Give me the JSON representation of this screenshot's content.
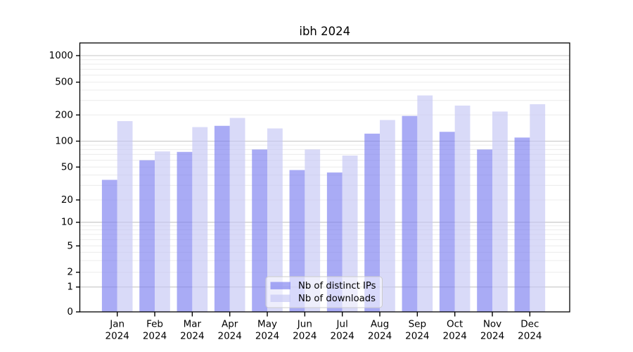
{
  "chart_data": {
    "type": "bar",
    "title": "ibh 2024",
    "xlabel": "",
    "ylabel": "",
    "yscale": "symlog",
    "ylim": [
      0,
      1400
    ],
    "grid": true,
    "legend_position": "lower center",
    "categories": [
      "Jan",
      "Feb",
      "Mar",
      "Apr",
      "May",
      "Jun",
      "Jul",
      "Aug",
      "Sep",
      "Oct",
      "Nov",
      "Dec"
    ],
    "xlabel_year": "2024",
    "yticks": [
      0,
      1,
      2,
      5,
      10,
      20,
      50,
      100,
      200,
      500,
      1000
    ],
    "series": [
      {
        "name": "Nb of distinct IPs",
        "color": "#7b7ef0",
        "opacity": 0.65,
        "values": [
          35,
          60,
          75,
          150,
          80,
          46,
          43,
          122,
          195,
          128,
          80,
          110
        ]
      },
      {
        "name": "Nb of downloads",
        "color": "#c5c6f4",
        "opacity": 0.65,
        "values": [
          170,
          76,
          145,
          185,
          140,
          80,
          68,
          175,
          345,
          260,
          220,
          270
        ]
      }
    ]
  }
}
